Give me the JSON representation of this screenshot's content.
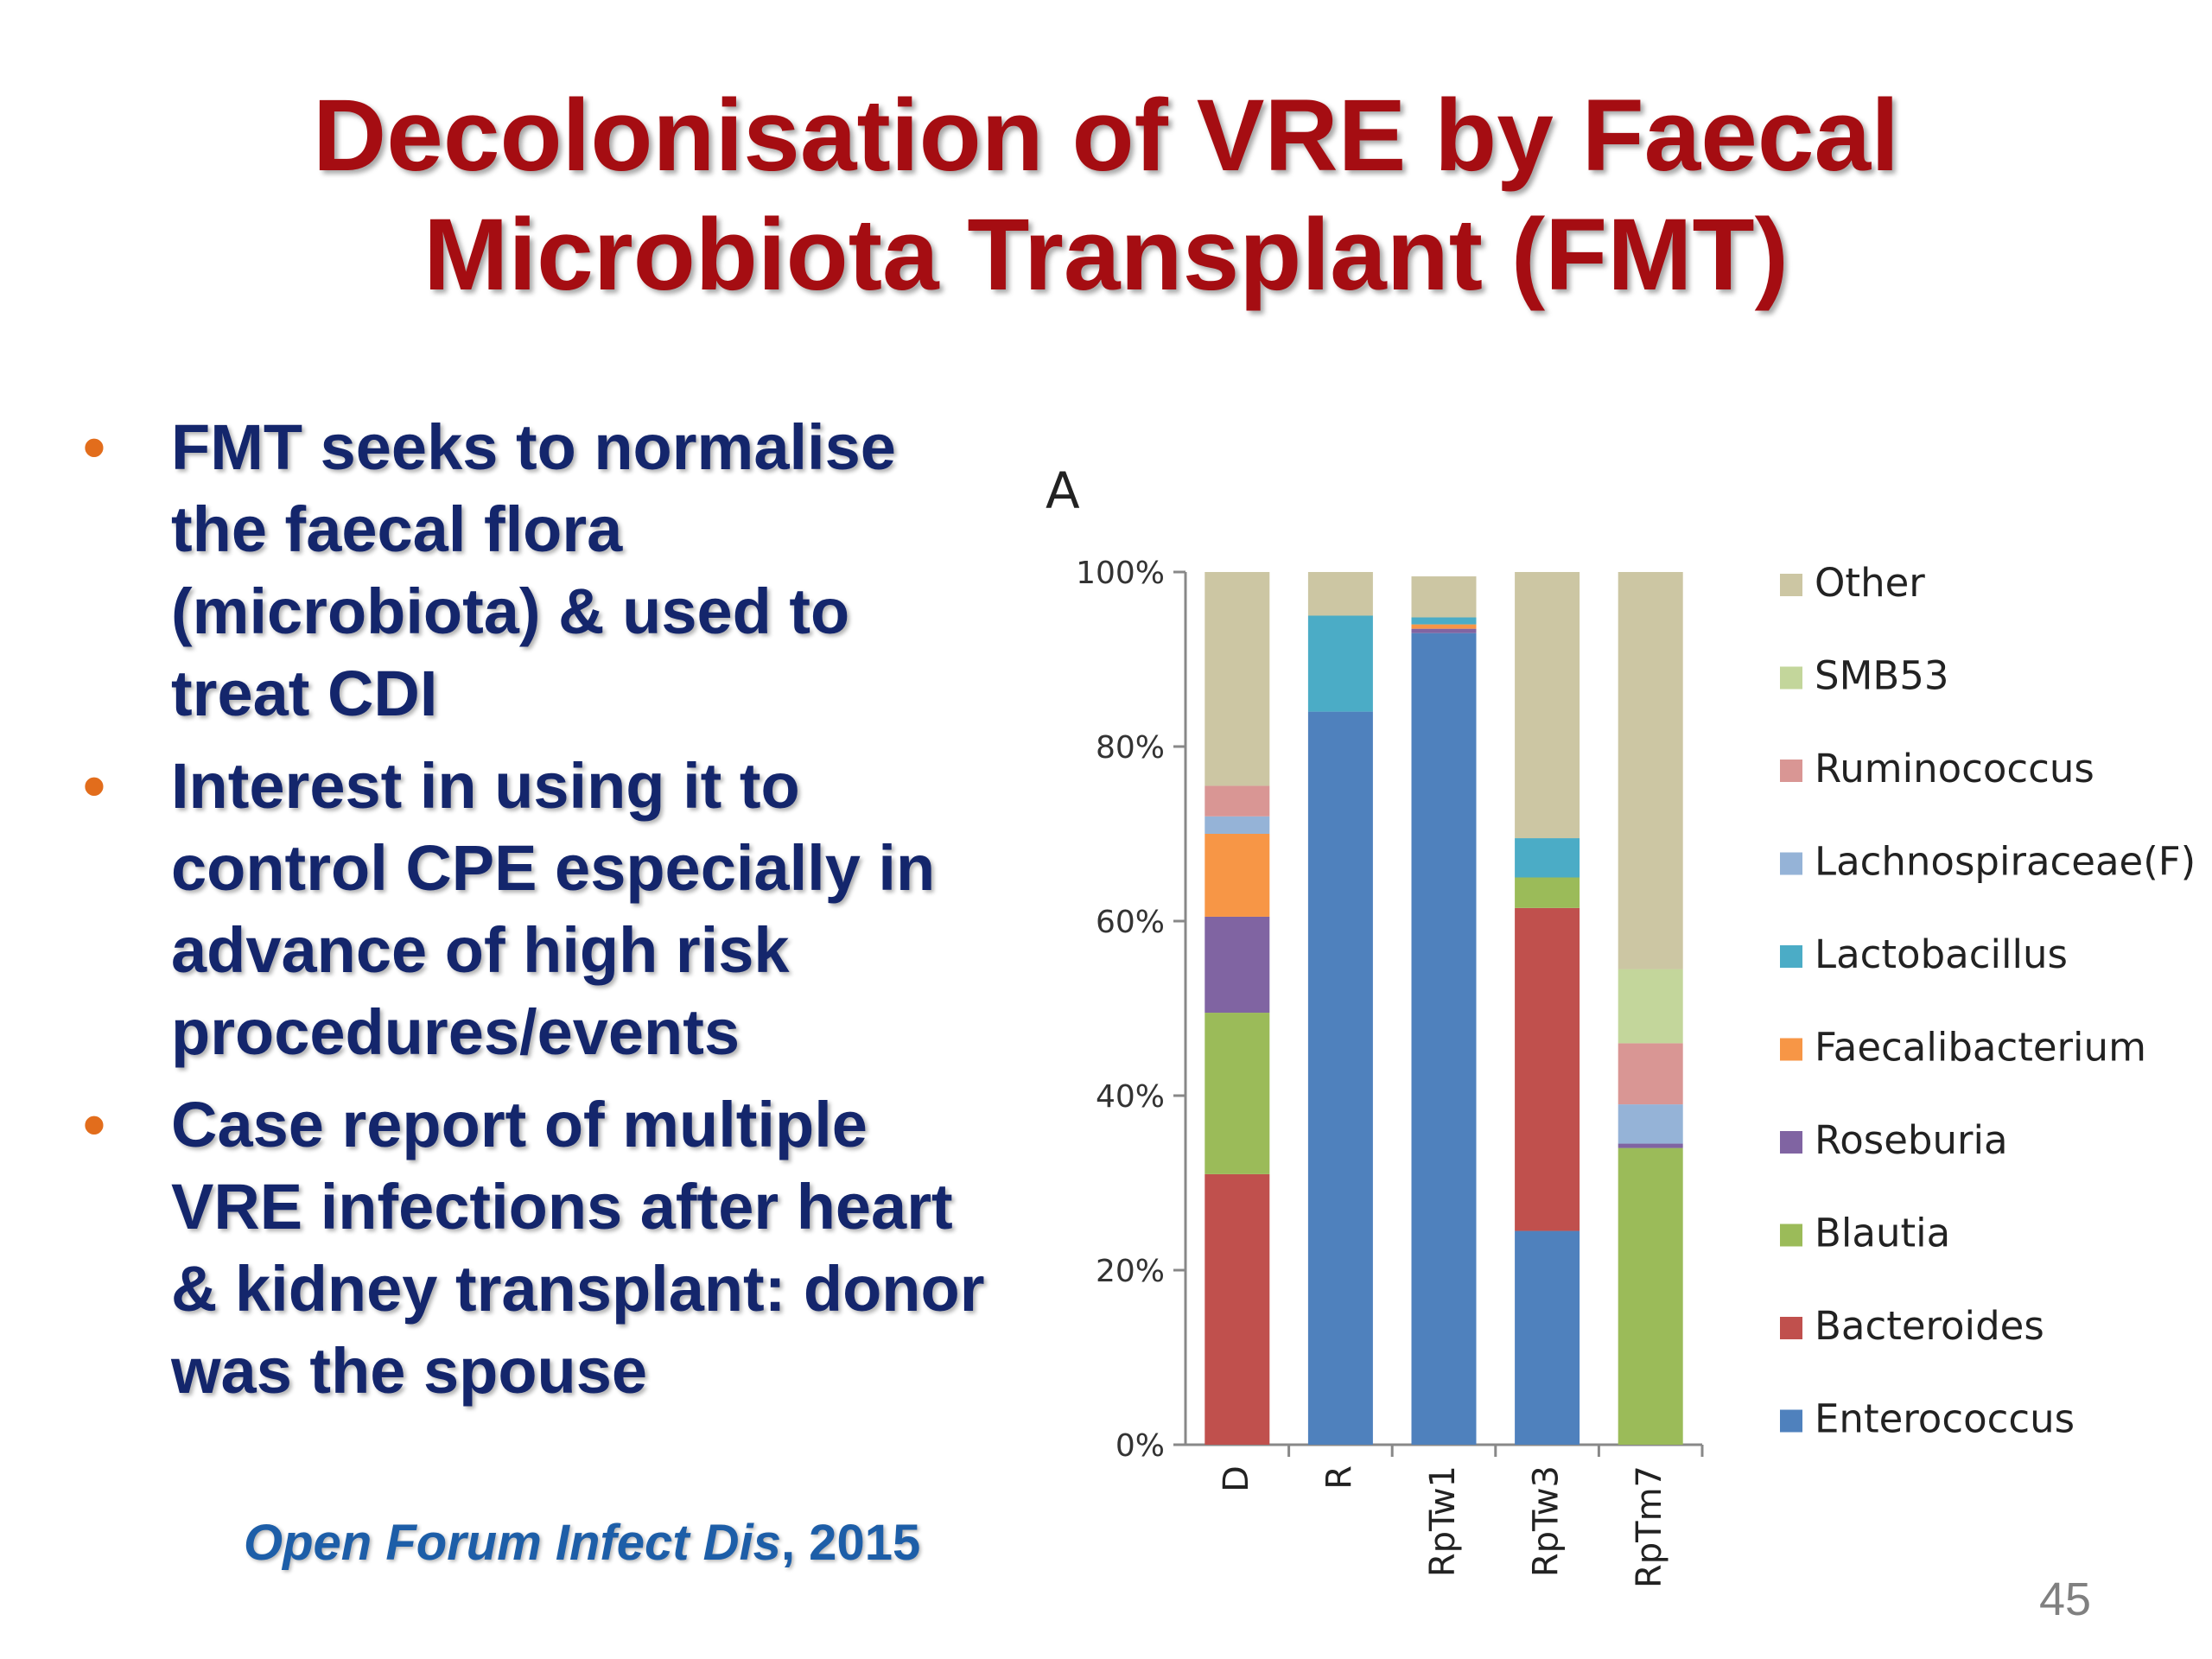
{
  "slide": {
    "title_line1": "Decolonisation of VRE by Faecal",
    "title_line2": "Microbiota Transplant (FMT)",
    "bullets": [
      "FMT seeks to normalise the faecal flora (microbiota) & used to treat CDI",
      "Interest in using it to control CPE especially in advance of high risk procedures/events",
      "Case report of multiple VRE infections after heart & kidney transplant:  donor was the spouse"
    ],
    "bullet_symbol": "•",
    "citation_journal": "Open Forum Infect Dis",
    "citation_year": ", 2015",
    "page_number": "45"
  },
  "colors": {
    "title": "#a50d12",
    "bullet_text": "#14266c",
    "bullet_dot": "#e26d1c",
    "citation": "#1d5ea8"
  },
  "chart_data": {
    "type": "bar",
    "stacked": true,
    "percent": true,
    "panel_label": "A",
    "title": "",
    "xlabel": "",
    "ylabel": "",
    "ylim": [
      0,
      100
    ],
    "yticks": [
      "0%",
      "20%",
      "40%",
      "60%",
      "80%",
      "100%"
    ],
    "grid": false,
    "legend_position": "right",
    "categories": [
      "D",
      "R",
      "RpTw1",
      "RpTw3",
      "RpTm7"
    ],
    "series": [
      {
        "name": "Enterococcus",
        "color": "#4f81bd",
        "values": [
          0,
          84,
          93,
          24.5,
          0
        ]
      },
      {
        "name": "Bacteroides",
        "color": "#c0504d",
        "values": [
          31,
          0,
          0,
          37,
          0
        ]
      },
      {
        "name": "Blautia",
        "color": "#9bbb59",
        "values": [
          18.5,
          0,
          0,
          3.5,
          34
        ]
      },
      {
        "name": "Roseburia",
        "color": "#8064a2",
        "values": [
          11,
          0,
          0.5,
          0,
          0.5
        ]
      },
      {
        "name": "Faecalibacterium",
        "color": "#f79646",
        "values": [
          9.5,
          0,
          0.5,
          0,
          0
        ]
      },
      {
        "name": "Lactobacillus",
        "color": "#4bacc6",
        "values": [
          0,
          11,
          0.8,
          4.5,
          0
        ]
      },
      {
        "name": "Lachnospiraceae(F)",
        "color": "#95b3d7",
        "values": [
          2,
          0,
          0,
          0,
          4.5
        ]
      },
      {
        "name": "Ruminococcus",
        "color": "#d99694",
        "values": [
          3.5,
          0,
          0,
          0,
          7
        ]
      },
      {
        "name": "SMB53",
        "color": "#c3d69b",
        "values": [
          0,
          0,
          0,
          0,
          8.5
        ]
      },
      {
        "name": "Other",
        "color": "#ccc6a3",
        "values": [
          24.5,
          5,
          4.7,
          30.5,
          45.5
        ]
      }
    ]
  }
}
